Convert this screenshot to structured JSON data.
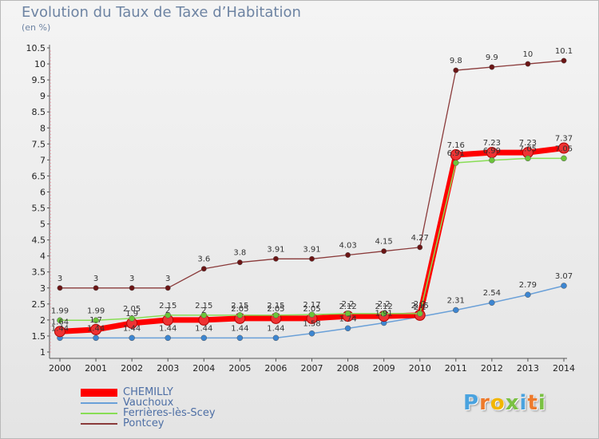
{
  "header": {
    "title": "Evolution du Taux de Taxe d’Habitation",
    "unit": "(en %)"
  },
  "logo": {
    "text": "Proxiti"
  },
  "colors": {
    "background": "#eeeeee",
    "title": "#6e84a3",
    "legend_text": "#4e6fa5"
  },
  "chart_data": {
    "type": "line",
    "title": "Evolution du Taux de Taxe d’Habitation",
    "ylabel": "(en %)",
    "xlabel": "",
    "x": [
      "2000",
      "2001",
      "2002",
      "2003",
      "2004",
      "2005",
      "2006",
      "2007",
      "2008",
      "2009",
      "2010",
      "2011",
      "2012",
      "2013",
      "2014"
    ],
    "ylim": [
      1,
      10.5
    ],
    "yticks": [
      "1",
      "1.5",
      "2",
      "2.5",
      "3",
      "3.5",
      "4",
      "4.5",
      "5",
      "5.5",
      "6",
      "6.5",
      "7",
      "7.5",
      "8",
      "8.5",
      "9",
      "9.5",
      "10",
      "10.5"
    ],
    "grid": false,
    "legend_position": "bottom-left",
    "series": [
      {
        "name": "CHEMILLY",
        "color": "#ff0000",
        "marker_color": "#ee3333",
        "values": [
          1.64,
          1.7,
          1.9,
          2.0,
          2.0,
          2.05,
          2.05,
          2.05,
          2.12,
          2.12,
          2.15,
          7.16,
          7.23,
          7.23,
          7.37
        ],
        "labels": [
          "1.64",
          "1.7",
          "1.9",
          "2",
          "2",
          "2.05",
          "2.05",
          "2.05",
          "2.12",
          "2.12",
          "2.15",
          "7.16",
          "7.23",
          "7.23",
          "7.37"
        ]
      },
      {
        "name": "Vauchoux",
        "color": "#6aa0d8",
        "marker_color": "#3d86d1",
        "values": [
          1.44,
          1.44,
          1.44,
          1.44,
          1.44,
          1.44,
          1.44,
          1.58,
          1.74,
          1.91,
          2.1,
          2.31,
          2.54,
          2.79,
          3.07
        ],
        "labels": [
          "1.44",
          "1.44",
          "1.44",
          "1.44",
          "1.44",
          "1.44",
          "1.44",
          "1.58",
          "1.74",
          "1.91",
          "2.1",
          "2.31",
          "2.54",
          "2.79",
          "3.07"
        ]
      },
      {
        "name": "Ferrières-lès-Scey",
        "color": "#88dd55",
        "marker_color": "#6cc43a",
        "values": [
          1.99,
          1.99,
          2.05,
          2.15,
          2.15,
          2.15,
          2.15,
          2.17,
          2.2,
          2.2,
          2.2,
          6.91,
          6.99,
          7.05,
          7.05
        ],
        "labels": [
          "1.99",
          "1.99",
          "2.05",
          "2.15",
          "2.15",
          "2.15",
          "2.15",
          "2.17",
          "2.2",
          "2.2",
          "2.2",
          "6.91",
          "6.99",
          "7.05",
          "7.05"
        ]
      },
      {
        "name": "Pontcey",
        "color": "#8a3a3a",
        "marker_color": "#6b1515",
        "values": [
          3,
          3,
          3,
          3,
          3.6,
          3.8,
          3.91,
          3.91,
          4.03,
          4.15,
          4.27,
          9.8,
          9.9,
          10,
          10.1
        ],
        "labels": [
          "3",
          "3",
          "3",
          "3",
          "3.6",
          "3.8",
          "3.91",
          "3.91",
          "4.03",
          "4.15",
          "4.27",
          "9.8",
          "9.9",
          "10",
          "10.1"
        ]
      }
    ]
  }
}
